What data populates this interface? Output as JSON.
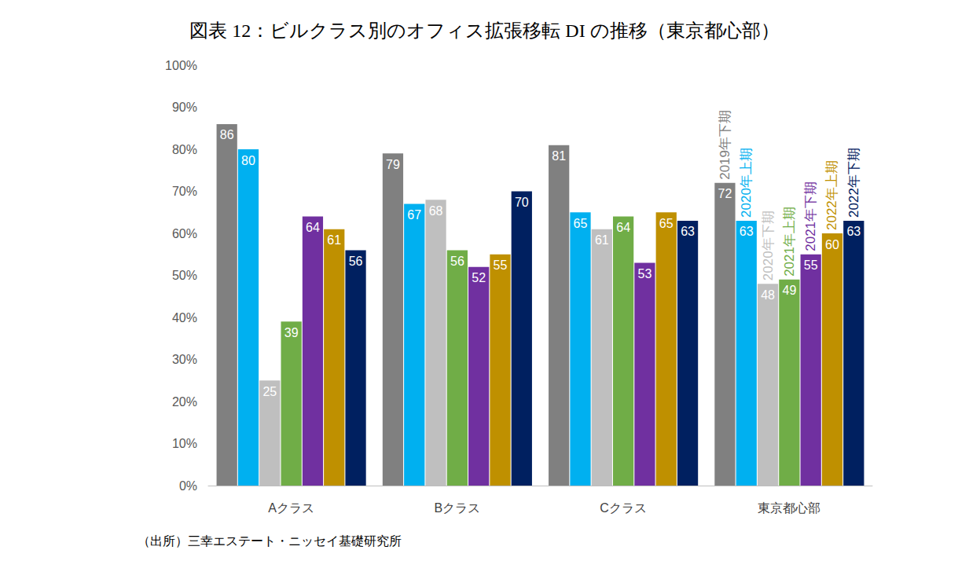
{
  "chart_data": {
    "type": "bar",
    "title": "図表 12：ビルクラス別のオフィス拡張移転 DI の推移（東京都心部）",
    "annotations": [
      "（出所）三幸エステート・ニッセイ基礎研究所"
    ],
    "categories": [
      "Aクラス",
      "Bクラス",
      "Cクラス",
      "東京都心部"
    ],
    "series": [
      {
        "name": "2019年下期",
        "color": "#808080",
        "values": [
          86,
          79,
          81,
          72
        ]
      },
      {
        "name": "2020年上期",
        "color": "#00b0f0",
        "values": [
          80,
          67,
          65,
          63
        ]
      },
      {
        "name": "2020年下期",
        "color": "#bfbfbf",
        "values": [
          25,
          68,
          61,
          48
        ]
      },
      {
        "name": "2021年上期",
        "color": "#70ad47",
        "values": [
          39,
          56,
          64,
          49
        ]
      },
      {
        "name": "2021年下期",
        "color": "#7030a0",
        "values": [
          64,
          52,
          53,
          55
        ]
      },
      {
        "name": "2022年上期",
        "color": "#bf9000",
        "values": [
          61,
          55,
          65,
          60
        ]
      },
      {
        "name": "2022年下期",
        "color": "#002060",
        "values": [
          56,
          70,
          63,
          63
        ]
      }
    ],
    "ylim": [
      0,
      100
    ],
    "yticks": [
      {
        "value": 0,
        "label": "0%"
      },
      {
        "value": 10,
        "label": "10%"
      },
      {
        "value": 20,
        "label": "20%"
      },
      {
        "value": 30,
        "label": "30%"
      },
      {
        "value": 40,
        "label": "40%"
      },
      {
        "value": 50,
        "label": "50%"
      },
      {
        "value": 60,
        "label": "60%"
      },
      {
        "value": 70,
        "label": "70%"
      },
      {
        "value": 80,
        "label": "80%"
      },
      {
        "value": 90,
        "label": "90%"
      },
      {
        "value": 100,
        "label": "100%"
      }
    ],
    "grid": false,
    "data_labels": true
  }
}
